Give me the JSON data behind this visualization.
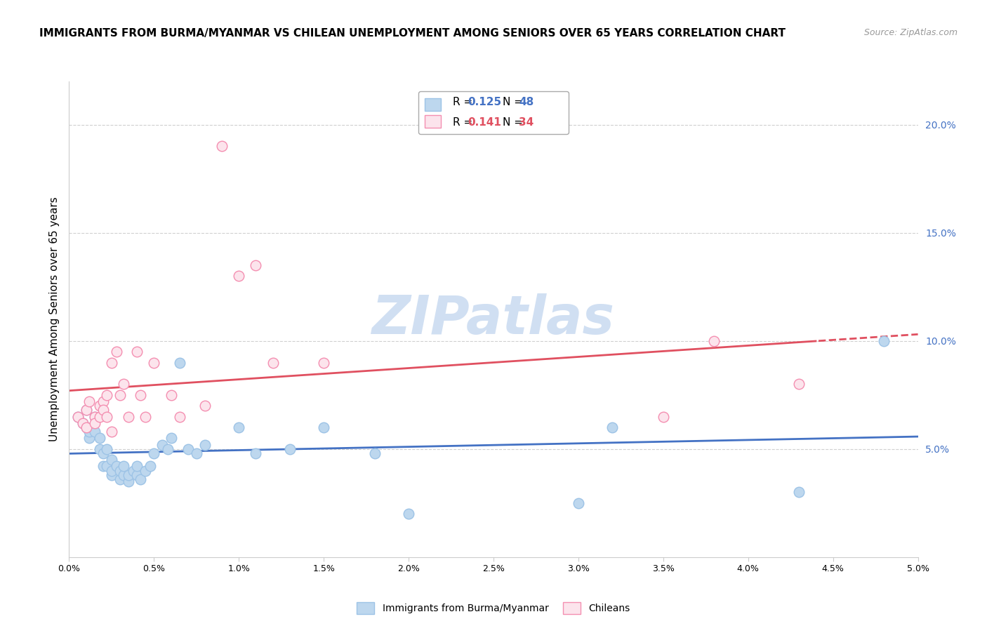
{
  "title": "IMMIGRANTS FROM BURMA/MYANMAR VS CHILEAN UNEMPLOYMENT AMONG SENIORS OVER 65 YEARS CORRELATION CHART",
  "source": "Source: ZipAtlas.com",
  "ylabel": "Unemployment Among Seniors over 65 years",
  "right_yticks": [
    0.05,
    0.1,
    0.15,
    0.2
  ],
  "right_yticklabels": [
    "5.0%",
    "10.0%",
    "15.0%",
    "20.0%"
  ],
  "legend_r1": "0.125",
  "legend_n1": "48",
  "legend_r2": "0.141",
  "legend_n2": "34",
  "blue_face": "#bdd7ee",
  "blue_edge": "#9dc3e6",
  "pink_face": "#fce4ec",
  "pink_edge": "#f48fb1",
  "trend_blue": "#4472c4",
  "trend_pink": "#e05060",
  "blue_scatter_x": [
    0.0005,
    0.0008,
    0.001,
    0.001,
    0.0012,
    0.0012,
    0.0015,
    0.0015,
    0.0018,
    0.0018,
    0.002,
    0.002,
    0.0022,
    0.0022,
    0.0025,
    0.0025,
    0.0025,
    0.0028,
    0.003,
    0.003,
    0.0032,
    0.0032,
    0.0035,
    0.0035,
    0.0038,
    0.004,
    0.004,
    0.0042,
    0.0045,
    0.0048,
    0.005,
    0.0055,
    0.0058,
    0.006,
    0.0065,
    0.007,
    0.0075,
    0.008,
    0.01,
    0.011,
    0.013,
    0.015,
    0.018,
    0.02,
    0.03,
    0.032,
    0.043,
    0.048
  ],
  "blue_scatter_y": [
    0.065,
    0.062,
    0.06,
    0.068,
    0.055,
    0.058,
    0.065,
    0.058,
    0.05,
    0.055,
    0.042,
    0.048,
    0.042,
    0.05,
    0.038,
    0.04,
    0.045,
    0.042,
    0.036,
    0.04,
    0.038,
    0.042,
    0.035,
    0.038,
    0.04,
    0.038,
    0.042,
    0.036,
    0.04,
    0.042,
    0.048,
    0.052,
    0.05,
    0.055,
    0.09,
    0.05,
    0.048,
    0.052,
    0.06,
    0.048,
    0.05,
    0.06,
    0.048,
    0.02,
    0.025,
    0.06,
    0.03,
    0.1
  ],
  "pink_scatter_x": [
    0.0005,
    0.0008,
    0.001,
    0.001,
    0.0012,
    0.0015,
    0.0015,
    0.0018,
    0.0018,
    0.002,
    0.002,
    0.0022,
    0.0022,
    0.0025,
    0.0025,
    0.0028,
    0.003,
    0.0032,
    0.0035,
    0.004,
    0.0042,
    0.0045,
    0.005,
    0.006,
    0.0065,
    0.008,
    0.009,
    0.01,
    0.011,
    0.012,
    0.015,
    0.035,
    0.038,
    0.043
  ],
  "pink_scatter_y": [
    0.065,
    0.062,
    0.06,
    0.068,
    0.072,
    0.065,
    0.062,
    0.07,
    0.065,
    0.072,
    0.068,
    0.065,
    0.075,
    0.09,
    0.058,
    0.095,
    0.075,
    0.08,
    0.065,
    0.095,
    0.075,
    0.065,
    0.09,
    0.075,
    0.065,
    0.07,
    0.19,
    0.13,
    0.135,
    0.09,
    0.09,
    0.065,
    0.1,
    0.08
  ],
  "xlim": [
    0,
    0.05
  ],
  "ylim": [
    0,
    0.22
  ],
  "xtick_positions": [
    0.0,
    0.005,
    0.01,
    0.015,
    0.02,
    0.025,
    0.03,
    0.035,
    0.04,
    0.045,
    0.05
  ],
  "xtick_labels": [
    "0.0%",
    "0.5%",
    "1.0%",
    "1.5%",
    "2.0%",
    "2.5%",
    "3.0%",
    "3.5%",
    "4.0%",
    "4.5%",
    "5.0%"
  ],
  "watermark_text": "ZIPatlas",
  "watermark_color": "#d0dff2",
  "legend1_label": "Immigrants from Burma/Myanmar",
  "legend2_label": "Chileans"
}
